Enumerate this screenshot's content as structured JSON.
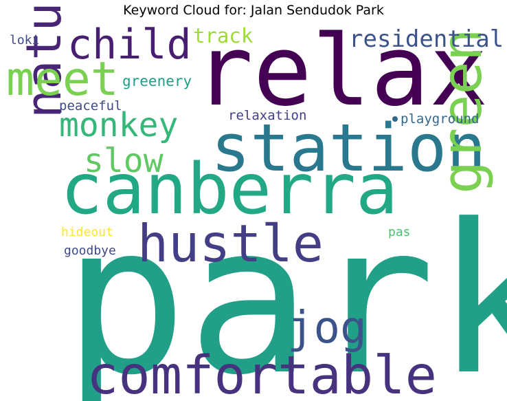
{
  "title": "Keyword Cloud for: Jalan Sendudok Park",
  "chart_data": {
    "type": "wordcloud",
    "title": "Keyword Cloud for: Jalan Sendudok Park",
    "words": [
      {
        "text": "park",
        "weight": 100,
        "color": "#21a087"
      },
      {
        "text": "relax",
        "weight": 64,
        "color": "#440154"
      },
      {
        "text": "canberra",
        "weight": 50,
        "color": "#22a884"
      },
      {
        "text": "station",
        "weight": 46,
        "color": "#2a788e"
      },
      {
        "text": "comfortable",
        "weight": 36,
        "color": "#46327e"
      },
      {
        "text": "green",
        "weight": 38,
        "color": "#7ad151"
      },
      {
        "text": "natural",
        "weight": 36,
        "color": "#482576"
      },
      {
        "text": "hustle",
        "weight": 36,
        "color": "#433e85"
      },
      {
        "text": "meet",
        "weight": 32,
        "color": "#7ad151"
      },
      {
        "text": "child",
        "weight": 28,
        "color": "#481f70"
      },
      {
        "text": "jog",
        "weight": 28,
        "color": "#3b528b"
      },
      {
        "text": "monkey",
        "weight": 22,
        "color": "#35b779"
      },
      {
        "text": "slow",
        "weight": 22,
        "color": "#5ec962"
      },
      {
        "text": "residential",
        "weight": 16,
        "color": "#3b528b"
      },
      {
        "text": "track",
        "weight": 14,
        "color": "#a0da39"
      },
      {
        "text": "greenery",
        "weight": 10,
        "color": "#1f9e89"
      },
      {
        "text": "peaceful",
        "weight": 9,
        "color": "#3e4a89"
      },
      {
        "text": "relaxation",
        "weight": 9,
        "color": "#424086"
      },
      {
        "text": "playground",
        "weight": 9,
        "color": "#31688e"
      },
      {
        "text": "loki",
        "weight": 8,
        "color": "#3e4989"
      },
      {
        "text": "hideout",
        "weight": 8,
        "color": "#fde725"
      },
      {
        "text": "goodbye",
        "weight": 8,
        "color": "#3e4989"
      },
      {
        "text": "pas",
        "weight": 8,
        "color": "#4ac16d"
      }
    ]
  }
}
